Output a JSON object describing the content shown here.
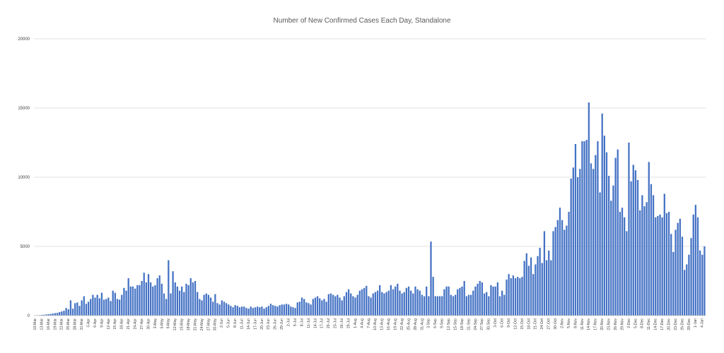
{
  "chart_data": {
    "type": "bar",
    "title": "Number of New Confirmed Cases Each Day, Standalone",
    "xlabel": "",
    "ylabel": "",
    "ylim": [
      0,
      20000
    ],
    "yticks": [
      0,
      5000,
      10000,
      15000,
      20000
    ],
    "grid": true,
    "legend": "none",
    "bar_color": "#4472c4",
    "start_date": "2020-03-10",
    "tick_every_days": 3,
    "x_tick_labels": [
      "10-Mar",
      "13-Mar",
      "16-Mar",
      "19-Mar",
      "22-Mar",
      "25-Mar",
      "28-Mar",
      "31-Mar",
      "3-Apr",
      "6-Apr",
      "9-Apr",
      "12-Apr",
      "15-Apr",
      "18-Apr",
      "21-Apr",
      "24-Apr",
      "27-Apr",
      "30-Apr",
      "3-May",
      "6-May",
      "9-May",
      "12-May",
      "15-May",
      "18-May",
      "21-May",
      "24-May",
      "27-May",
      "30-May",
      "2-Jun",
      "5-Jun",
      "8-Jun",
      "11-Jun",
      "14-Jun",
      "17-Jun",
      "20-Jun",
      "23-Jun",
      "26-Jun",
      "29-Jun",
      "2-Jul",
      "5-Jul",
      "8-Jul",
      "11-Jul",
      "14-Jul",
      "17-Jul",
      "20-Jul",
      "23-Jul",
      "26-Jul",
      "29-Jul",
      "1-Aug",
      "4-Aug",
      "7-Aug",
      "10-Aug",
      "13-Aug",
      "16-Aug",
      "19-Aug",
      "22-Aug",
      "25-Aug",
      "28-Aug",
      "31-Aug",
      "3-Sep",
      "6-Sep",
      "9-Sep",
      "12-Sep",
      "15-Sep",
      "18-Sep",
      "21-Sep",
      "24-Sep",
      "27-Sep",
      "30-Sep",
      "3-Oct",
      "6-Oct",
      "9-Oct",
      "12-Oct",
      "15-Oct",
      "18-Oct",
      "21-Oct",
      "24-Oct",
      "27-Oct",
      "30-Oct",
      "2-Nov",
      "5-Nov",
      "8-Nov",
      "11-Nov",
      "14-Nov",
      "17-Nov",
      "20-Nov",
      "23-Nov",
      "26-Nov",
      "29-Nov",
      "2-Dec",
      "5-Dec",
      "8-Dec",
      "11-Dec",
      "14-Dec",
      "17-Dec",
      "20-Dec",
      "23-Dec",
      "26-Dec",
      "29-Dec",
      "1-Jan",
      "4-Jan"
    ],
    "values": [
      10,
      20,
      30,
      50,
      60,
      80,
      100,
      120,
      150,
      180,
      200,
      250,
      300,
      350,
      550,
      450,
      1100,
      500,
      900,
      950,
      700,
      1100,
      1400,
      850,
      1000,
      1200,
      1500,
      1300,
      1500,
      1250,
      1650,
      1150,
      1200,
      1300,
      1050,
      1800,
      1650,
      1200,
      1150,
      1500,
      2000,
      1800,
      2700,
      2100,
      2100,
      1950,
      2200,
      2200,
      2500,
      3100,
      2400,
      3000,
      2400,
      2100,
      2200,
      2700,
      2900,
      2300,
      1600,
      1200,
      4000,
      1600,
      3200,
      2400,
      2100,
      1800,
      2100,
      1700,
      2300,
      2200,
      2700,
      2400,
      2500,
      1700,
      1200,
      1100,
      1500,
      1600,
      1500,
      1300,
      1000,
      1550,
      900,
      800,
      1100,
      1000,
      900,
      800,
      700,
      600,
      750,
      700,
      600,
      650,
      650,
      550,
      500,
      650,
      550,
      600,
      650,
      600,
      650,
      500,
      600,
      700,
      850,
      750,
      700,
      650,
      750,
      800,
      800,
      850,
      800,
      650,
      600,
      550,
      950,
      1000,
      1300,
      1200,
      950,
      900,
      800,
      1200,
      1300,
      1400,
      1250,
      1100,
      1200,
      1000,
      1550,
      1600,
      1500,
      1400,
      1500,
      1300,
      1100,
      1400,
      1700,
      1900,
      1600,
      1400,
      1300,
      1500,
      1800,
      1900,
      2000,
      2150,
      1400,
      1300,
      1600,
      1700,
      1800,
      2200,
      1700,
      1600,
      1700,
      1800,
      2200,
      1900,
      2100,
      2300,
      1800,
      1600,
      1700,
      2000,
      2100,
      1800,
      1600,
      2100,
      1900,
      1800,
      1500,
      1400,
      2100,
      1400,
      5350,
      2800,
      1400,
      1400,
      1400,
      1400,
      1900,
      2100,
      2100,
      1500,
      1400,
      1500,
      1900,
      2000,
      2100,
      2500,
      1400,
      1500,
      1500,
      1800,
      2100,
      2300,
      2500,
      2400,
      1600,
      1700,
      1400,
      2200,
      2100,
      2100,
      2400,
      1400,
      1800,
      1500,
      2600,
      3000,
      2700,
      2900,
      2700,
      2800,
      2700,
      2800,
      3950,
      4500,
      3600,
      4200,
      3000,
      3700,
      4300,
      4900,
      3800,
      6100,
      4000,
      4700,
      4000,
      6100,
      6400,
      6900,
      7800,
      6900,
      6200,
      6500,
      7500,
      9900,
      10700,
      12400,
      10000,
      10600,
      12600,
      12600,
      12700,
      15400,
      11000,
      10600,
      11600,
      12600,
      8900,
      14600,
      13000,
      11800,
      10100,
      8300,
      9400,
      11400,
      12000,
      7500,
      7800,
      7100,
      6100,
      12500,
      9700,
      10900,
      10500,
      9800,
      7600,
      8700,
      7900,
      8200,
      11100,
      9500,
      8700,
      7100,
      7200,
      7300,
      7100,
      8800,
      7400,
      7500,
      5900,
      4600,
      6200,
      6700,
      7000,
      5700,
      3300,
      3700,
      4400,
      5600,
      7300,
      8000,
      7100,
      4700,
      4400,
      5000
    ]
  }
}
